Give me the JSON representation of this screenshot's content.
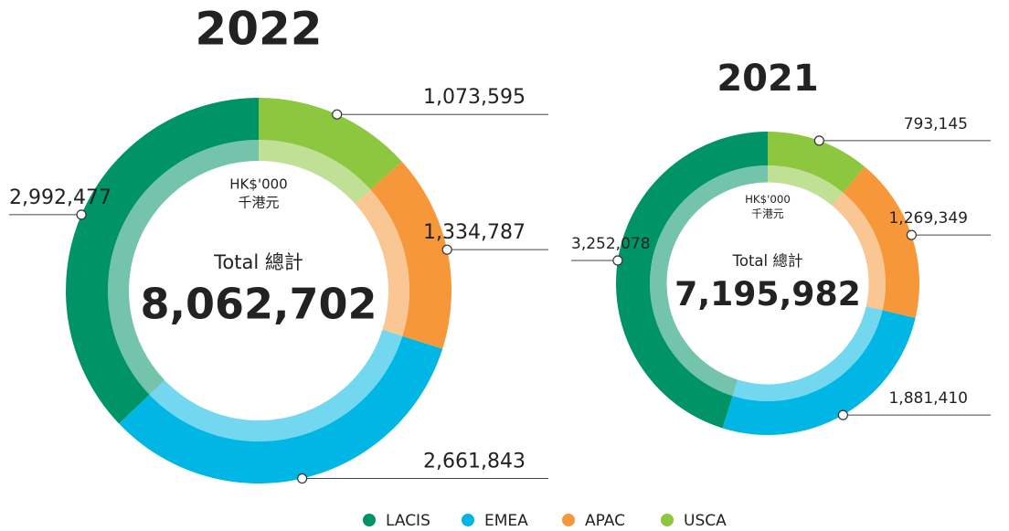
{
  "chart_data": [
    {
      "type": "pie",
      "title": "2022",
      "unit": "HK$'000",
      "unit_zh": "千港元",
      "center_caption": "Total 總計",
      "total": "8,062,702",
      "direction": "counterclockwise",
      "donut": true,
      "categories": [
        "LACIS",
        "EMEA",
        "APAC",
        "USCA"
      ],
      "values": [
        2992477,
        2661843,
        1334787,
        1073595
      ],
      "value_labels": [
        "2,992,477",
        "2,661,843",
        "1,334,787",
        "1,073,595"
      ],
      "colors": [
        "#009366",
        "#00b6e4",
        "#f6983a",
        "#8dc63f"
      ]
    },
    {
      "type": "pie",
      "title": "2021",
      "unit": "HK$'000",
      "unit_zh": "千港元",
      "center_caption": "Total 總計",
      "total": "7,195,982",
      "direction": "counterclockwise",
      "donut": true,
      "categories": [
        "LACIS",
        "EMEA",
        "APAC",
        "USCA"
      ],
      "values": [
        3252078,
        1881410,
        1269349,
        793145
      ],
      "value_labels": [
        "3,252,078",
        "1,881,410",
        "1,269,349",
        "793,145"
      ],
      "colors": [
        "#009366",
        "#00b6e4",
        "#f6983a",
        "#8dc63f"
      ]
    }
  ]
}
